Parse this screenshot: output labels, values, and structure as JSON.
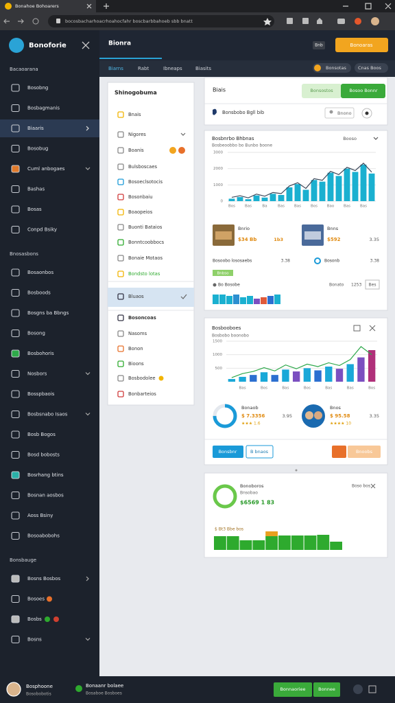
{
  "browser": {
    "tab": "Bonahoe Bohoarers",
    "url": "bocosbacharhoacrhoahocfahr boscbarbbahoeb sbb bnatt"
  },
  "sidebar": {
    "brand": "Bonoforie",
    "sections": [
      {
        "title": "Bacaoarana",
        "items": [
          "Bosobng",
          "Bosbagmanis",
          "Biaaris",
          "Bosobug",
          "Cuml anbogaes",
          "Bashas",
          "Bosas",
          "Conpd Bsiky"
        ]
      },
      {
        "title": "Bnosasbons",
        "items": [
          "Bosaonbos",
          "Bosboods",
          "Bosgns ba Bbngs",
          "Bosong",
          "Bosbohoris",
          "Nosbors",
          "Bosspbaois",
          "Bosbsnabo Isaos",
          "Bosb Bogos",
          "Bosd bobosts",
          "Bosrhang btins",
          "Bosnan aosbos",
          "Aoss Bsiny",
          "Bosoabobohs"
        ]
      },
      {
        "title": "Bonsbauge",
        "items": [
          "Bosns Bosbos",
          "Bosoes",
          "Bosbs",
          "Bosns"
        ]
      }
    ]
  },
  "header": {
    "title": "Bionra",
    "badge": "Bnb",
    "button": "Bonoaras"
  },
  "tabs": {
    "items": [
      "Biarns",
      "Rabt",
      "Ibneaps",
      "Biasits"
    ],
    "pill_left": "Bonsotas",
    "pill_right": "Cnas Boos"
  },
  "panel": {
    "title": "Shinogobuma",
    "items": [
      "Bnais",
      "Nigores",
      "Boanis",
      "Bulsboscaes",
      "Bosoeclsotocis",
      "Bosonbaiu",
      "Boaopeios",
      "Buonti Bataios",
      "Bonntcoobbocs",
      "Bonaie Motaos",
      "Bondsto lotas",
      "Bluaos",
      "Bosoncoas",
      "Nasoms",
      "Bonon",
      "Bioons",
      "Bosbodolee",
      "Bonbarteios"
    ]
  },
  "card1": {
    "title": "Biais",
    "button_light": "Bonsostos",
    "button": "Bosoo Bonnr",
    "row_label": "Bonsbobo Bgll bib",
    "search": "Bnono"
  },
  "card2": {
    "menu": "Booso",
    "products": [
      {
        "name": "Bnrio",
        "price": "$34 Bb",
        "stat": "1b3"
      },
      {
        "name": "Bnns",
        "price": "$592",
        "stat": "3.35"
      }
    ],
    "row1": [
      "Bosoobo lososaebs",
      "3.38",
      "Bosonb",
      "3.38"
    ],
    "tag": "Bnbso",
    "row2": [
      "Bo Bosobe",
      "Bonato",
      "1253",
      "Bes"
    ]
  },
  "card3": {
    "items": [
      {
        "name": "Bonaob",
        "price": "$ 7.3356",
        "rating": "★★★ 1.6",
        "stat": "3.95"
      },
      {
        "name": "Bnos",
        "price": "$ 95.58",
        "rating": "★★★★ 10",
        "stat": "3.35"
      }
    ],
    "ring_percent": 75,
    "button_primary": "Bonsbnr",
    "button_outline": "B bnaos",
    "button_orange": "Bnoobs"
  },
  "card4": {
    "title": "Bonoboros",
    "subtitle": "Bnsobao",
    "amount": "$6569 1 83",
    "menu": "Boso bos",
    "ring_percent": 100,
    "note": "$ Bt3 Bbe bos"
  },
  "footer": {
    "user": "Bosphoone",
    "user_sub": "Bosobobotis",
    "status": "Bonaanr bolaee",
    "status_sub": "Bosaboe Bosboes",
    "buttons": [
      "Bonnaoriee",
      "Bonnee"
    ]
  },
  "chart_data": [
    {
      "type": "bar",
      "title": "Bosbnrbo Bhbnas",
      "subtitle": "Bosbeoobbo bo Bunbo boone",
      "categories": [
        "Bos",
        null,
        "Bas",
        null,
        "Ba",
        null,
        "Bas",
        null,
        "Bas",
        null,
        "Bos",
        null,
        "Bao",
        null,
        "Bas",
        null,
        "Bas",
        null
      ],
      "values": [
        150,
        250,
        120,
        350,
        220,
        450,
        380,
        850,
        1050,
        700,
        1300,
        1200,
        1750,
        1550,
        2000,
        1800,
        2250,
        1700
      ],
      "color": "#1ab0d0",
      "line_color": "#3a4658",
      "ylim": [
        0,
        3000
      ],
      "yticks": [
        0,
        1000,
        2000,
        3000
      ],
      "grid": true
    },
    {
      "type": "bar",
      "title": "Bosbooboes",
      "subtitle": "Bosbobo boonobo",
      "categories": [
        null,
        "Bas",
        null,
        "Bos",
        null,
        "Bas",
        null,
        "Bos",
        null,
        "Bas",
        null,
        "Bas",
        null,
        "Bos"
      ],
      "values": [
        100,
        180,
        250,
        350,
        250,
        450,
        380,
        500,
        420,
        560,
        480,
        650,
        900,
        1170
      ],
      "colors": [
        "#1aa8d8",
        "#1aa8d8",
        "#2c6fd0",
        "#1aa8d8",
        "#2c6fd0",
        "#1aa8d8",
        "#7b4fc0",
        "#1aa8d8",
        "#2c6fd0",
        "#1aa8d8",
        "#7b4fc0",
        "#1aa8d8",
        "#7b4fc0",
        "#b0307a"
      ],
      "line": {
        "color": "#2da84a",
        "values": [
          150,
          300,
          380,
          520,
          400,
          620,
          480,
          650,
          560,
          700,
          600,
          820,
          1300,
          1000
        ]
      },
      "ylim": [
        0,
        1500
      ],
      "yticks": [
        500,
        1000,
        1500
      ],
      "grid": true
    },
    {
      "type": "bar",
      "values": [
        14,
        14,
        12,
        14,
        10,
        12,
        8,
        10,
        12,
        14
      ],
      "colors": [
        "#1ab0d0",
        "#1ab0d0",
        "#1ab0d0",
        "#2c8fd0",
        "#1ab0d0",
        "#1ab0d0",
        "#7b4fc0",
        "#e05a3a",
        "#2c6fd0",
        "#1ab0d0"
      ]
    },
    {
      "type": "stacked-bar",
      "series": [
        {
          "color": "#2eaa2e",
          "values": [
            20,
            20,
            14,
            14,
            20,
            21,
            21,
            21,
            22,
            12
          ]
        },
        {
          "color": "#e8a020",
          "values": [
            null,
            null,
            null,
            null,
            7,
            null,
            null,
            null,
            null,
            null
          ]
        }
      ]
    }
  ]
}
